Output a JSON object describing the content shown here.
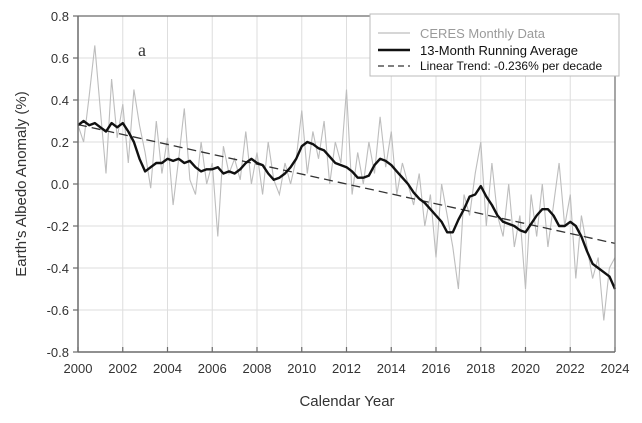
{
  "chart_data": {
    "type": "line",
    "title": "",
    "panel_label": "a",
    "xlabel": "Calendar Year",
    "ylabel": "Earth's Albedo Anomaly (%)",
    "xlim": [
      2000,
      2024
    ],
    "ylim": [
      -0.8,
      0.8
    ],
    "x_ticks": [
      2000,
      2002,
      2004,
      2006,
      2008,
      2010,
      2012,
      2014,
      2016,
      2018,
      2020,
      2022,
      2024
    ],
    "x_tick_labels": [
      "2000",
      "2002",
      "2004",
      "2006",
      "2008",
      "2010",
      "2012",
      "2014",
      "2016",
      "2018",
      "2020",
      "2022",
      "2024"
    ],
    "y_ticks": [
      -0.8,
      -0.6,
      -0.4,
      -0.2,
      0.0,
      0.2,
      0.4,
      0.6,
      0.8
    ],
    "y_tick_labels": [
      "-0.8",
      "-0.6",
      "-0.4",
      "-0.2",
      "0.0",
      "0.2",
      "0.4",
      "0.6",
      "0.8"
    ],
    "grid": true,
    "legend": {
      "placement": "top-right",
      "entries": [
        {
          "label": "CERES Monthly Data",
          "style": "solid-light",
          "color": "#bdbdbd"
        },
        {
          "label": "13-Month Running Average",
          "style": "solid-thick",
          "color": "#111111"
        },
        {
          "label": "Linear Trend: -0.236% per decade",
          "style": "dashed",
          "color": "#333333"
        }
      ]
    },
    "series": [
      {
        "name": "CERES Monthly Data",
        "color": "#bdbdbd",
        "x": [
          2000.0,
          2000.25,
          2000.5,
          2000.75,
          2001.0,
          2001.25,
          2001.5,
          2001.75,
          2002.0,
          2002.25,
          2002.5,
          2002.75,
          2003.0,
          2003.25,
          2003.5,
          2003.75,
          2004.0,
          2004.25,
          2004.5,
          2004.75,
          2005.0,
          2005.25,
          2005.5,
          2005.75,
          2006.0,
          2006.25,
          2006.5,
          2006.75,
          2007.0,
          2007.25,
          2007.5,
          2007.75,
          2008.0,
          2008.25,
          2008.5,
          2008.75,
          2009.0,
          2009.25,
          2009.5,
          2009.75,
          2010.0,
          2010.25,
          2010.5,
          2010.75,
          2011.0,
          2011.25,
          2011.5,
          2011.75,
          2012.0,
          2012.25,
          2012.5,
          2012.75,
          2013.0,
          2013.25,
          2013.5,
          2013.75,
          2014.0,
          2014.25,
          2014.5,
          2014.75,
          2015.0,
          2015.25,
          2015.5,
          2015.75,
          2016.0,
          2016.25,
          2016.5,
          2016.75,
          2017.0,
          2017.25,
          2017.5,
          2017.75,
          2018.0,
          2018.25,
          2018.5,
          2018.75,
          2019.0,
          2019.25,
          2019.5,
          2019.75,
          2020.0,
          2020.25,
          2020.5,
          2020.75,
          2021.0,
          2021.25,
          2021.5,
          2021.75,
          2022.0,
          2022.25,
          2022.5,
          2022.75,
          2023.0,
          2023.25,
          2023.5,
          2023.75,
          2024.0
        ],
        "values": [
          0.28,
          0.2,
          0.42,
          0.66,
          0.35,
          0.05,
          0.5,
          0.22,
          0.38,
          0.1,
          0.45,
          0.28,
          0.15,
          -0.02,
          0.3,
          0.05,
          0.22,
          -0.1,
          0.12,
          0.36,
          0.02,
          -0.05,
          0.2,
          0.0,
          0.1,
          -0.25,
          0.18,
          0.05,
          0.12,
          0.02,
          0.25,
          0.0,
          0.15,
          -0.05,
          0.2,
          0.02,
          -0.05,
          0.1,
          0.0,
          0.12,
          0.35,
          0.05,
          0.25,
          0.12,
          0.3,
          0.0,
          0.2,
          0.1,
          0.45,
          -0.05,
          0.15,
          0.0,
          0.2,
          0.05,
          0.32,
          0.08,
          0.25,
          -0.05,
          0.1,
          0.0,
          -0.1,
          0.05,
          -0.2,
          -0.05,
          -0.35,
          0.0,
          -0.15,
          -0.3,
          -0.5,
          -0.05,
          -0.15,
          0.05,
          0.2,
          -0.2,
          0.1,
          -0.15,
          -0.25,
          0.0,
          -0.3,
          -0.15,
          -0.5,
          -0.05,
          -0.25,
          0.0,
          -0.3,
          -0.1,
          0.1,
          -0.2,
          -0.05,
          -0.45,
          -0.15,
          -0.3,
          -0.45,
          -0.35,
          -0.65,
          -0.4,
          -0.35
        ]
      },
      {
        "name": "13-Month Running Average",
        "color": "#111111",
        "x": [
          2000.0,
          2000.25,
          2000.5,
          2000.75,
          2001.0,
          2001.25,
          2001.5,
          2001.75,
          2002.0,
          2002.25,
          2002.5,
          2002.75,
          2003.0,
          2003.25,
          2003.5,
          2003.75,
          2004.0,
          2004.25,
          2004.5,
          2004.75,
          2005.0,
          2005.25,
          2005.5,
          2005.75,
          2006.0,
          2006.25,
          2006.5,
          2006.75,
          2007.0,
          2007.25,
          2007.5,
          2007.75,
          2008.0,
          2008.25,
          2008.5,
          2008.75,
          2009.0,
          2009.25,
          2009.5,
          2009.75,
          2010.0,
          2010.25,
          2010.5,
          2010.75,
          2011.0,
          2011.25,
          2011.5,
          2011.75,
          2012.0,
          2012.25,
          2012.5,
          2012.75,
          2013.0,
          2013.25,
          2013.5,
          2013.75,
          2014.0,
          2014.25,
          2014.5,
          2014.75,
          2015.0,
          2015.25,
          2015.5,
          2015.75,
          2016.0,
          2016.25,
          2016.5,
          2016.75,
          2017.0,
          2017.25,
          2017.5,
          2017.75,
          2018.0,
          2018.25,
          2018.5,
          2018.75,
          2019.0,
          2019.25,
          2019.5,
          2019.75,
          2020.0,
          2020.25,
          2020.5,
          2020.75,
          2021.0,
          2021.25,
          2021.5,
          2021.75,
          2022.0,
          2022.25,
          2022.5,
          2022.75,
          2023.0,
          2023.25,
          2023.5,
          2023.75,
          2024.0
        ],
        "values": [
          0.28,
          0.3,
          0.28,
          0.29,
          0.27,
          0.25,
          0.29,
          0.27,
          0.29,
          0.25,
          0.2,
          0.12,
          0.06,
          0.08,
          0.1,
          0.1,
          0.12,
          0.11,
          0.12,
          0.1,
          0.11,
          0.08,
          0.06,
          0.07,
          0.07,
          0.08,
          0.05,
          0.06,
          0.05,
          0.07,
          0.1,
          0.12,
          0.1,
          0.09,
          0.05,
          0.02,
          0.03,
          0.05,
          0.08,
          0.12,
          0.18,
          0.2,
          0.19,
          0.17,
          0.16,
          0.13,
          0.1,
          0.09,
          0.08,
          0.06,
          0.03,
          0.03,
          0.04,
          0.09,
          0.12,
          0.11,
          0.09,
          0.06,
          0.03,
          0.0,
          -0.04,
          -0.07,
          -0.09,
          -0.12,
          -0.15,
          -0.18,
          -0.23,
          -0.23,
          -0.17,
          -0.12,
          -0.06,
          -0.05,
          -0.01,
          -0.06,
          -0.1,
          -0.15,
          -0.18,
          -0.19,
          -0.2,
          -0.22,
          -0.23,
          -0.19,
          -0.15,
          -0.12,
          -0.12,
          -0.15,
          -0.2,
          -0.2,
          -0.18,
          -0.2,
          -0.25,
          -0.32,
          -0.38,
          -0.4,
          -0.42,
          -0.44,
          -0.5
        ]
      },
      {
        "name": "Linear Trend: -0.236% per decade",
        "color": "#333333",
        "x": [
          2000,
          2024
        ],
        "values": [
          0.283,
          -0.283
        ]
      }
    ]
  }
}
